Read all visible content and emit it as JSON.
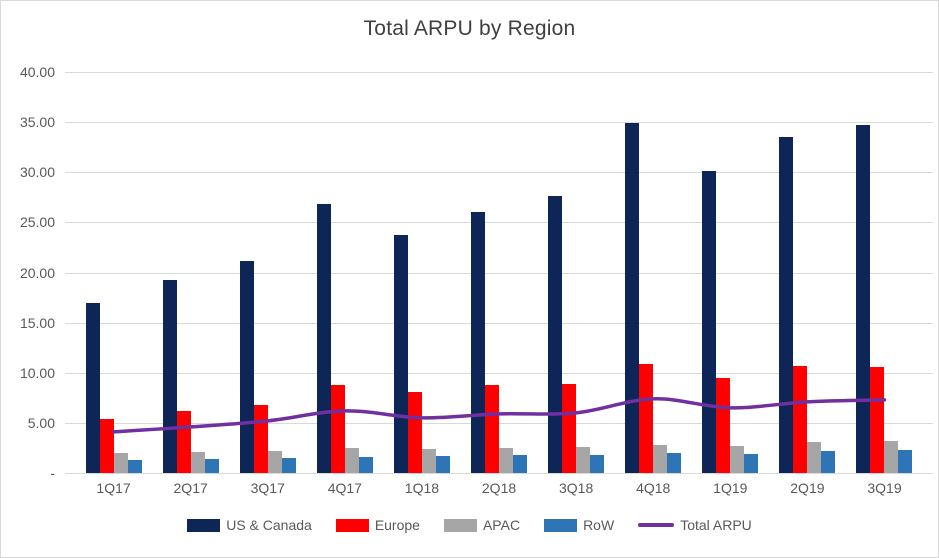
{
  "chart_data": {
    "type": "combo",
    "title": "Total ARPU by Region",
    "categories": [
      "1Q17",
      "2Q17",
      "3Q17",
      "4Q17",
      "1Q18",
      "2Q18",
      "3Q18",
      "4Q18",
      "1Q19",
      "2Q19",
      "3Q19"
    ],
    "bar_series": [
      {
        "name": "US & Canada",
        "color": "#0E2558",
        "values": [
          17.0,
          19.3,
          21.1,
          26.8,
          23.7,
          26.0,
          27.6,
          34.9,
          30.1,
          33.5,
          34.7
        ]
      },
      {
        "name": "Europe",
        "color": "#FF0000",
        "values": [
          5.4,
          6.2,
          6.8,
          8.8,
          8.1,
          8.8,
          8.9,
          10.9,
          9.5,
          10.7,
          10.6
        ]
      },
      {
        "name": "APAC",
        "color": "#A6A6A6",
        "values": [
          2.0,
          2.1,
          2.2,
          2.5,
          2.4,
          2.5,
          2.6,
          2.8,
          2.7,
          3.1,
          3.2
        ]
      },
      {
        "name": "RoW",
        "color": "#2E75B6",
        "values": [
          1.3,
          1.4,
          1.5,
          1.6,
          1.7,
          1.8,
          1.8,
          2.0,
          1.9,
          2.2,
          2.3
        ]
      }
    ],
    "line_series": [
      {
        "name": "Total ARPU",
        "color": "#7030A0",
        "smoothed": true,
        "values": [
          4.1,
          4.6,
          5.2,
          6.2,
          5.5,
          5.9,
          6.0,
          7.4,
          6.5,
          7.1,
          7.3
        ]
      }
    ],
    "y_axis": {
      "min": 0,
      "max": 40,
      "tick_interval": 5,
      "tick_labels": [
        "40.00",
        "35.00",
        "30.00",
        "25.00",
        "20.00",
        "15.00",
        "10.00",
        "5.00",
        "-"
      ]
    },
    "grid": true,
    "legend_position": "bottom",
    "colors": {
      "background": "#FFFFFF",
      "border": "#D9D9D9",
      "gridline": "#D9D9D9",
      "title_text": "#404040",
      "axis_text": "#595959",
      "legend_text": "#595959"
    }
  }
}
